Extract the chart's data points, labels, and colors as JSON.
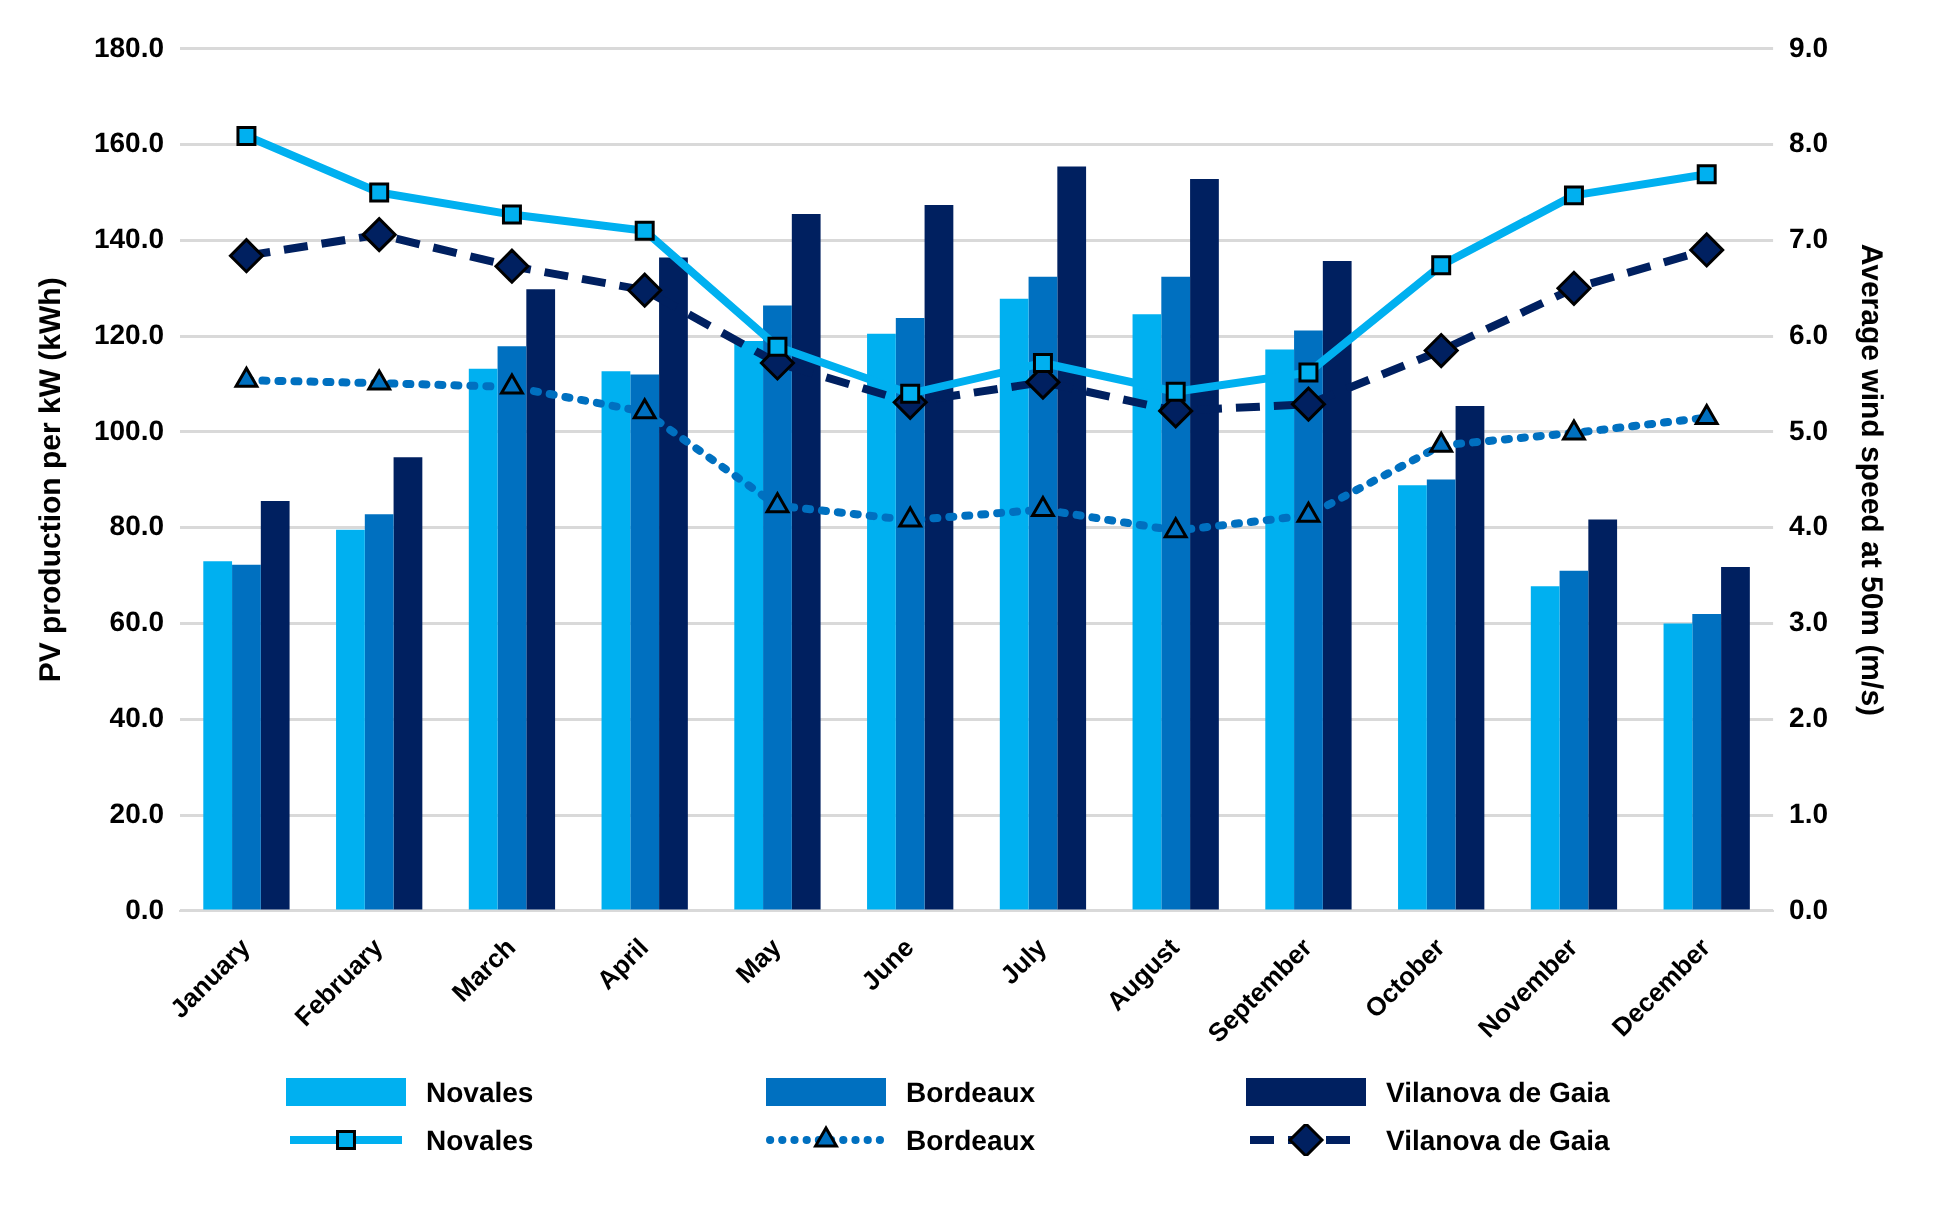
{
  "chart_data": {
    "type": "bar",
    "ylabel": "PV production per kW (kWh)",
    "y2label": "Average wind speed at 50m (m/s)",
    "categories": [
      "January",
      "February",
      "March",
      "April",
      "May",
      "June",
      "July",
      "August",
      "September",
      "October",
      "November",
      "December"
    ],
    "series": [
      {
        "name": "Novales",
        "type": "bar",
        "color": "#00b0f0",
        "values": [
          73.0,
          79.6,
          113.2,
          112.7,
          119,
          120.5,
          127.8,
          124.6,
          117.2,
          88.9,
          67.8,
          60.0
        ]
      },
      {
        "name": "Bordeaux",
        "type": "bar",
        "color": "#0070c0",
        "values": [
          72.3,
          82.8,
          117.9,
          112.0,
          126.4,
          123.8,
          132.4,
          132.4,
          121.2,
          90.1,
          71.0,
          62.0
        ]
      },
      {
        "name": "Vilanova de Gaia",
        "type": "bar",
        "color": "#002060",
        "values": [
          85.6,
          94.7,
          129.8,
          136.4,
          145.5,
          147.4,
          155.4,
          152.8,
          135.7,
          105.4,
          81.7,
          71.8
        ]
      },
      {
        "name": "Novales",
        "type": "line",
        "axis": "y2",
        "color": "#00b0f0",
        "marker": "square",
        "line_style": "solid",
        "values": [
          8.09,
          7.5,
          7.27,
          7.1,
          5.89,
          5.4,
          5.72,
          5.42,
          5.62,
          6.74,
          7.47,
          7.69
        ]
      },
      {
        "name": "Bordeaux",
        "type": "line",
        "axis": "y2",
        "color": "#0070c0",
        "marker": "triangle",
        "line_style": "dotted",
        "values": [
          5.54,
          5.51,
          5.47,
          5.21,
          4.23,
          4.08,
          4.19,
          3.97,
          4.13,
          4.86,
          4.99,
          5.15
        ]
      },
      {
        "name": "Vilanova de Gaia",
        "type": "line",
        "axis": "y2",
        "color": "#002060",
        "marker": "diamond",
        "line_style": "dashed",
        "values": [
          6.84,
          7.06,
          6.73,
          6.48,
          5.72,
          5.31,
          5.52,
          5.22,
          5.29,
          5.85,
          6.5,
          6.9
        ]
      }
    ],
    "ylim": [
      0,
      180
    ],
    "yticks": [
      {
        "value": 0,
        "label": "0.0"
      },
      {
        "value": 20,
        "label": "20.0"
      },
      {
        "value": 40,
        "label": "40.0"
      },
      {
        "value": 60,
        "label": "60.0"
      },
      {
        "value": 80,
        "label": "80.0"
      },
      {
        "value": 100,
        "label": "100.0"
      },
      {
        "value": 120,
        "label": "120.0"
      },
      {
        "value": 140,
        "label": "140.0"
      },
      {
        "value": 160,
        "label": "160.0"
      },
      {
        "value": 180,
        "label": "180.0"
      }
    ],
    "y2lim": [
      0,
      9
    ],
    "y2ticks": [
      {
        "value": 0,
        "label": "0.0"
      },
      {
        "value": 1,
        "label": "1.0"
      },
      {
        "value": 2,
        "label": "2.0"
      },
      {
        "value": 3,
        "label": "3.0"
      },
      {
        "value": 4,
        "label": "4.0"
      },
      {
        "value": 5,
        "label": "5.0"
      },
      {
        "value": 6,
        "label": "6.0"
      },
      {
        "value": 7,
        "label": "7.0"
      },
      {
        "value": 8,
        "label": "8.0"
      },
      {
        "value": 9,
        "label": "9.0"
      }
    ],
    "grid": "y",
    "legend": "bottom"
  }
}
